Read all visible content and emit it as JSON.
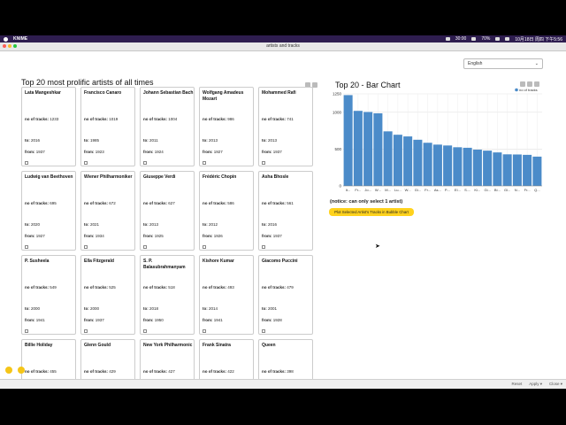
{
  "menubar": {
    "app_name": "KNIME",
    "time": "30:00",
    "battery": "70%",
    "clock": "10月18日 周四 下午5:56"
  },
  "window": {
    "title": "artists and tracks"
  },
  "language_select": {
    "value": "English"
  },
  "artists_section": {
    "title": "Top 20 most prolific artists of all times"
  },
  "labels": {
    "tracks": "no of tracks:",
    "to": "to:",
    "from": "from:"
  },
  "artists": [
    {
      "name": "Lata Mangeshkar",
      "tracks": "1233",
      "to": "2016",
      "from": "1937"
    },
    {
      "name": "Francisco Canaro",
      "tracks": "1019",
      "to": "1985",
      "from": "1923"
    },
    {
      "name": "Johann Sebastian Bach",
      "tracks": "1004",
      "to": "2011",
      "from": "1924"
    },
    {
      "name": "Wolfgang Amadeus Mozart",
      "tracks": "986",
      "to": "2013",
      "from": "1927"
    },
    {
      "name": "Mohammed Rafi",
      "tracks": "741",
      "to": "2013",
      "from": "1937"
    },
    {
      "name": "Ludwig van Beethoven",
      "tracks": "695",
      "to": "2020",
      "from": "1927"
    },
    {
      "name": "Wiener Philharmoniker",
      "tracks": "672",
      "to": "2021",
      "from": "1934"
    },
    {
      "name": "Giuseppe Verdi",
      "tracks": "627",
      "to": "2013",
      "from": "1925"
    },
    {
      "name": "Frédéric Chopin",
      "tracks": "586",
      "to": "2012",
      "from": "1926"
    },
    {
      "name": "Asha Bhosle",
      "tracks": "561",
      "to": "2016",
      "from": "1937"
    },
    {
      "name": "P. Susheela",
      "tracks": "549",
      "to": "2000",
      "from": "1941"
    },
    {
      "name": "Ella Fitzgerald",
      "tracks": "525",
      "to": "2000",
      "from": "1937"
    },
    {
      "name": "S. P. Balasubrahmanyam",
      "tracks": "518",
      "to": "2018",
      "from": "1950"
    },
    {
      "name": "Kishore Kumar",
      "tracks": "493",
      "to": "2014",
      "from": "1941"
    },
    {
      "name": "Giacomo Puccini",
      "tracks": "479",
      "to": "2001",
      "from": "1928"
    },
    {
      "name": "Billie Holiday",
      "tracks": "455",
      "to": "",
      "from": ""
    },
    {
      "name": "Glenn Gould",
      "tracks": "429",
      "to": "",
      "from": ""
    },
    {
      "name": "New York Philharmonic",
      "tracks": "427",
      "to": "",
      "from": ""
    },
    {
      "name": "Frank Sinatra",
      "tracks": "422",
      "to": "",
      "from": ""
    },
    {
      "name": "Queen",
      "tracks": "398",
      "to": "",
      "from": ""
    }
  ],
  "bar_section": {
    "title": "Top 20 - Bar Chart",
    "notice": "(notice: can only select 1 artist)",
    "plot_button": "Plot Selected Artist's Tracks in Bubble Chart"
  },
  "chart_data": {
    "type": "bar",
    "legend": "no of tracks",
    "legend_position": "top-right",
    "grid": true,
    "ylim": [
      0,
      1250
    ],
    "yticks": [
      0,
      500,
      1000,
      1250
    ],
    "ytick_labels": [
      "0",
      "500",
      "1000",
      "1250"
    ],
    "xtick_labels": [
      "It...",
      "Fr...",
      "Jo...",
      "W...",
      "M...",
      "Lu...",
      "W...",
      "Gi...",
      "Fr...",
      "As...",
      "P....",
      "El...",
      "S....",
      "Ki...",
      "Gi...",
      "Bi...",
      "Gl...",
      "N...",
      "Fr...",
      "Q..."
    ],
    "values": [
      1233,
      1019,
      1004,
      986,
      741,
      695,
      672,
      627,
      586,
      561,
      549,
      525,
      518,
      493,
      479,
      455,
      429,
      427,
      422,
      398
    ],
    "bar_color": "#4b8bc9"
  },
  "footer": {
    "reset": "Reset",
    "apply": "Apply ▾",
    "close": "Close ▾"
  }
}
